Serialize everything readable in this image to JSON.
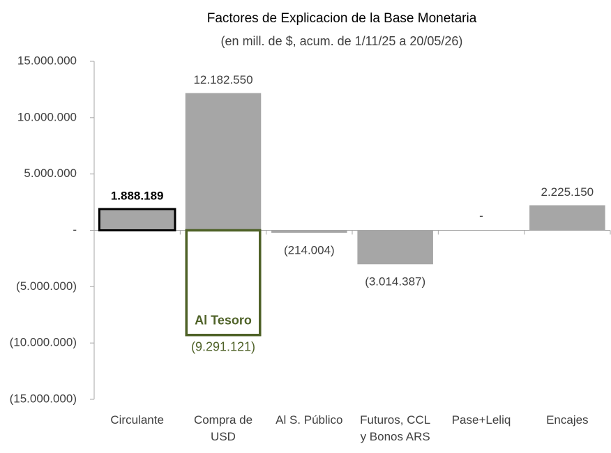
{
  "chart_data": {
    "type": "bar",
    "title": "Factores de Explicacion de la Base Monetaria",
    "subtitle": "(en mill. de $, acum. de 1/11/25 a 20/05/26)",
    "categories": [
      "Circulante",
      "Compra de\nUSD",
      "Al S. Público",
      "Futuros, CCL\ny Bonos ARS",
      "Pase+Leliq",
      "Encajes"
    ],
    "series": [
      {
        "values": [
          1888189,
          12182550,
          -214004,
          -3014387,
          0,
          2225150
        ],
        "value_labels": [
          "1.888.189",
          "12.182.550",
          "(214.004)",
          "(3.014.387)",
          "-",
          "2.225.150"
        ],
        "color": "#a6a6a6",
        "edgecolors": [
          "#000000",
          null,
          null,
          null,
          null,
          null
        ]
      },
      {
        "name": "Al Tesoro",
        "values": [
          null,
          -9291121,
          null,
          null,
          null,
          null
        ],
        "value_labels": [
          null,
          "(9.291.121)",
          null,
          null,
          null,
          null
        ],
        "color": "#4f6228"
      }
    ],
    "ylim": [
      -15000000,
      15000000
    ],
    "yticks": [
      {
        "value": -15000000,
        "label": "(15.000.000)"
      },
      {
        "value": -10000000,
        "label": "(10.000.000)"
      },
      {
        "value": -5000000,
        "label": "(5.000.000)"
      },
      {
        "value": 0,
        "label": "-"
      },
      {
        "value": 5000000,
        "label": "5.000.000"
      },
      {
        "value": 10000000,
        "label": "10.000.000"
      },
      {
        "value": 15000000,
        "label": "15.000.000"
      }
    ]
  }
}
